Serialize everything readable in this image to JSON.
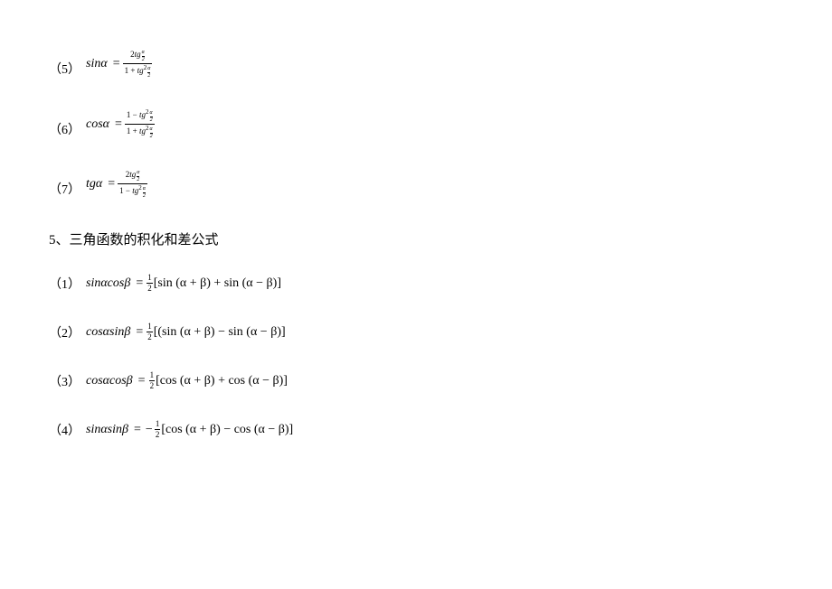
{
  "colors": {
    "text": "#000000",
    "bg": "#ffffff"
  },
  "items": {
    "n5": "（5）",
    "n6": "（6）",
    "n7": "（7）",
    "heading": "5、三角函数的积化和差公式",
    "n1": "（1）",
    "n2": "（2）",
    "n3": "（3）",
    "n4": "（4）",
    "lhs5": "sinα",
    "lhs6": "cosα",
    "lhs7": "tgα",
    "f5_num_a": "2",
    "f5_num_b": "tg",
    "f5_den_a": "1 + ",
    "f5_den_b": "tg",
    "f6_num_a": "1 − ",
    "f6_num_b": "tg",
    "f6_den_a": "1 + ",
    "f6_den_b": "tg",
    "f7_num_a": "2",
    "f7_num_b": "tg",
    "f7_den_a": "1 − ",
    "f7_den_b": "tg",
    "mini_t": "α",
    "mini_b": "2",
    "sq": "2",
    "half_t": "1",
    "half_b": "2",
    "p1_l": "sinαcosβ",
    "p1_r": "[sin (α + β) + sin (α − β)]",
    "p2_l": "cosαsinβ",
    "p2_r": "[(sin (α + β) − sin (α − β)]",
    "p3_l": "cosαcosβ",
    "p3_r": "[cos (α + β) + cos (α − β)]",
    "p4_l": "sinαsinβ",
    "p4_r": "[cos (α + β) − cos (α − β)]",
    "equals": "=",
    "minus": "−"
  }
}
